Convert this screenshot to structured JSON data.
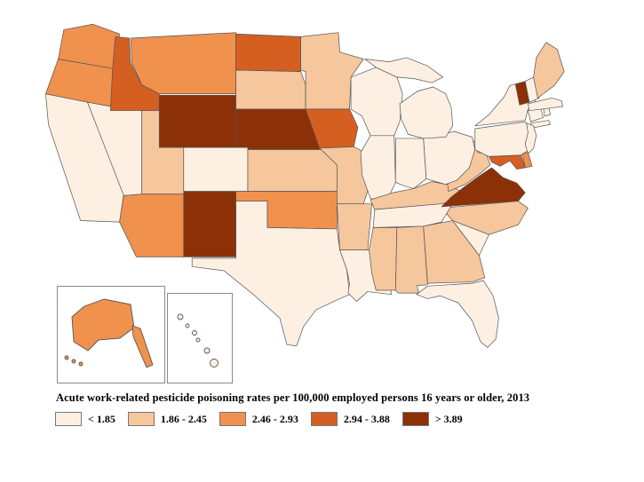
{
  "title": "Acute work-related pesticide poisoning rates per 100,000 employed persons 16 years or older, 2013",
  "legend": {
    "items": [
      {
        "label": "< 1.85",
        "color": "#fdf0e2",
        "bin": 1
      },
      {
        "label": "1.86 - 2.45",
        "color": "#f6c69c",
        "bin": 2
      },
      {
        "label": "2.46 - 2.93",
        "color": "#f0914e",
        "bin": 3
      },
      {
        "label": "2.94 - 3.88",
        "color": "#d55f20",
        "bin": 4
      },
      {
        "label": "> 3.89",
        "color": "#8c3007",
        "bin": 5
      }
    ]
  },
  "map": {
    "border_color": "#555555",
    "states": {
      "WA": 3,
      "OR": 3,
      "CA": 1,
      "NV": 1,
      "ID": 4,
      "MT": 3,
      "WY": 5,
      "UT": 2,
      "CO": 1,
      "AZ": 3,
      "NM": 5,
      "ND": 4,
      "SD": 2,
      "NE": 5,
      "KS": 2,
      "OK": 3,
      "TX": 1,
      "MN": 2,
      "IA": 4,
      "MO": 2,
      "AR": 2,
      "LA": 1,
      "WI": 1,
      "IL": 1,
      "MS": 2,
      "MI": 1,
      "IN": 1,
      "OH": 1,
      "KY": 2,
      "TN": 1,
      "AL": 2,
      "GA": 2,
      "FL": 1,
      "SC": 1,
      "NC": 2,
      "VA": 5,
      "WV": 2,
      "PA": 1,
      "NY": 1,
      "NJ": 1,
      "DE": 3,
      "MD": 4,
      "VT": 5,
      "NH": 1,
      "ME": 2,
      "MA": 1,
      "RI": 1,
      "CT": 1,
      "AK": 3,
      "HI": 1
    }
  },
  "chart_data": {
    "type": "heatmap",
    "variant": "us-state-choropleth",
    "title": "Acute work-related pesticide poisoning rates per 100,000 employed persons 16 years or older, 2013",
    "legend_bins": [
      "< 1.85",
      "1.86 - 2.45",
      "2.46 - 2.93",
      "2.94 - 3.88",
      "> 3.89"
    ],
    "legend_position": "bottom-left",
    "state_bin_index": {
      "WA": 3,
      "OR": 3,
      "CA": 1,
      "NV": 1,
      "ID": 4,
      "MT": 3,
      "WY": 5,
      "UT": 2,
      "CO": 1,
      "AZ": 3,
      "NM": 5,
      "ND": 4,
      "SD": 2,
      "NE": 5,
      "KS": 2,
      "OK": 3,
      "TX": 1,
      "MN": 2,
      "IA": 4,
      "MO": 2,
      "AR": 2,
      "LA": 1,
      "WI": 1,
      "IL": 1,
      "MS": 2,
      "MI": 1,
      "IN": 1,
      "OH": 1,
      "KY": 2,
      "TN": 1,
      "AL": 2,
      "GA": 2,
      "FL": 1,
      "SC": 1,
      "NC": 2,
      "VA": 5,
      "WV": 2,
      "PA": 1,
      "NY": 1,
      "NJ": 1,
      "DE": 3,
      "MD": 4,
      "VT": 5,
      "NH": 1,
      "ME": 2,
      "MA": 1,
      "RI": 1,
      "CT": 1,
      "AK": 3,
      "HI": 1
    }
  }
}
